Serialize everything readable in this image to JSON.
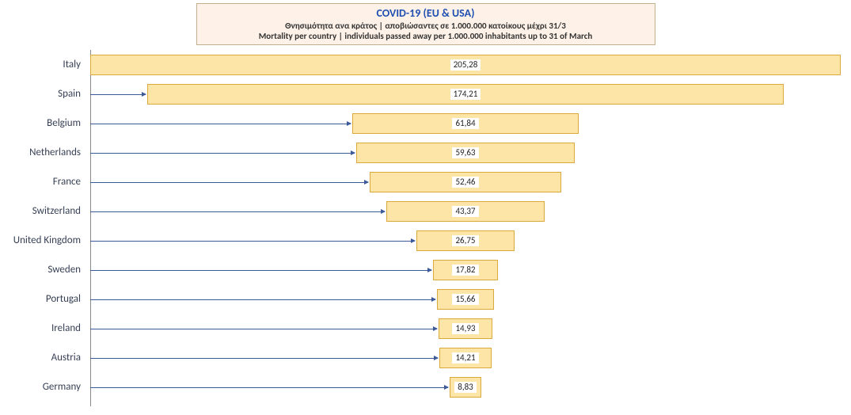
{
  "chart": {
    "type": "bar",
    "title_main": "COVID-19   (EU & USA)",
    "subtitle_el": "Θνησιμότητα ανα κράτος | αποβιώσαντες σε 1.000.000 κατοίκους μέχρι 31/3",
    "subtitle_en": "Mortality per country | individuals passed away per 1.000.000 inhabitants up to 31 of March",
    "bar_fill": "#fde4a7",
    "bar_border": "#d9a93d",
    "header_bg": "#fef2e8",
    "title_color": "#1f4fb0",
    "stem_color": "#3b5a9a",
    "background": "#ffffff",
    "label_fontsize": 13,
    "value_fontsize": 11,
    "max_value": 205.28,
    "rows": [
      {
        "label": "Italy",
        "value": 205.28,
        "display": "205,28"
      },
      {
        "label": "Spain",
        "value": 174.21,
        "display": "174,21"
      },
      {
        "label": "Belgium",
        "value": 61.84,
        "display": "61,84"
      },
      {
        "label": "Netherlands",
        "value": 59.63,
        "display": "59,63"
      },
      {
        "label": "France",
        "value": 52.46,
        "display": "52,46"
      },
      {
        "label": "Switzerland",
        "value": 43.37,
        "display": "43,37"
      },
      {
        "label": "United Kingdom",
        "value": 26.75,
        "display": "26,75"
      },
      {
        "label": "Sweden",
        "value": 17.82,
        "display": "17,82"
      },
      {
        "label": "Portugal",
        "value": 15.66,
        "display": "15,66"
      },
      {
        "label": "Ireland",
        "value": 14.93,
        "display": "14,93"
      },
      {
        "label": "Austria",
        "value": 14.21,
        "display": "14,21"
      },
      {
        "label": "Germany",
        "value": 8.83,
        "display": "8,83"
      }
    ]
  }
}
